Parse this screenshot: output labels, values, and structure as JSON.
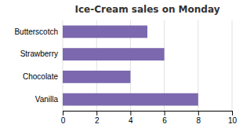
{
  "chart_data": {
    "type": "bar",
    "orientation": "horizontal",
    "title": "Ice-Cream sales on Monday",
    "categories": [
      "Vanilla",
      "Chocolate",
      "Strawberry",
      "Butterscotch"
    ],
    "values": [
      8,
      4,
      6,
      5
    ],
    "color": "#7B68AE",
    "xlim": [
      0,
      10
    ],
    "xticks": [
      0,
      2,
      4,
      6,
      8,
      10
    ],
    "grid": true
  }
}
